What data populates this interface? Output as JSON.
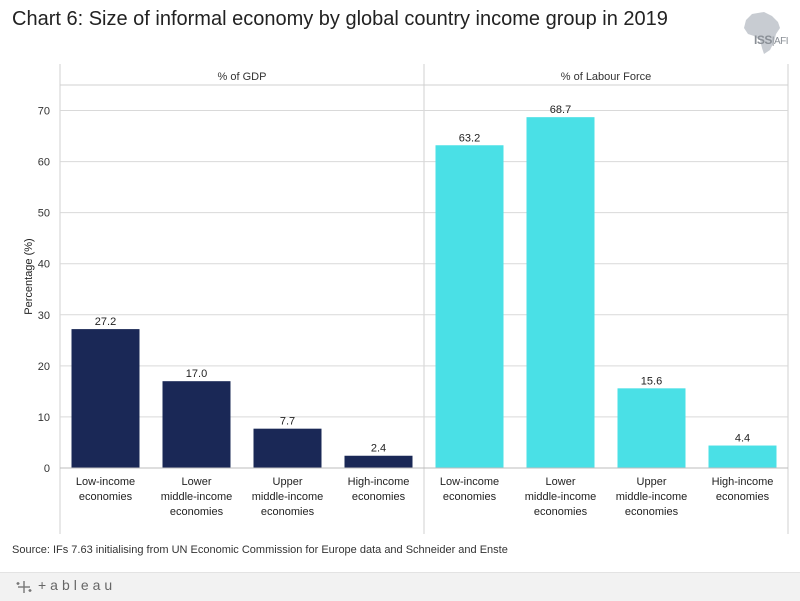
{
  "title": "Chart 6: Size of informal economy by global country income group in 2019",
  "logo": {
    "brand": "ISS",
    "suffix": "AFI"
  },
  "source": "Source: IFs 7.63 initialising from UN Economic Commission for Europe data and Schneider and Enste",
  "footer": {
    "brand": "+ableau"
  },
  "colors": {
    "gdp": "#1a2856",
    "labour": "#4ae0e6",
    "grid": "#d9d9d9"
  },
  "chart_data": {
    "type": "bar",
    "ylabel": "Percentage (%)",
    "ylim": [
      0,
      75
    ],
    "yticks": [
      0,
      10,
      20,
      30,
      40,
      50,
      60,
      70
    ],
    "categories": [
      [
        "Low-income",
        "economies"
      ],
      [
        "Lower",
        "middle-income",
        "economies"
      ],
      [
        "Upper",
        "middle-income",
        "economies"
      ],
      [
        "High-income",
        "economies"
      ]
    ],
    "panels": [
      {
        "name": "% of GDP",
        "values": [
          27.2,
          17.0,
          7.7,
          2.4
        ],
        "labels": [
          "27.2",
          "17.0",
          "7.7",
          "2.4"
        ]
      },
      {
        "name": "% of Labour Force",
        "values": [
          63.2,
          68.7,
          15.6,
          4.4
        ],
        "labels": [
          "63.2",
          "68.7",
          "15.6",
          "4.4"
        ]
      }
    ]
  }
}
